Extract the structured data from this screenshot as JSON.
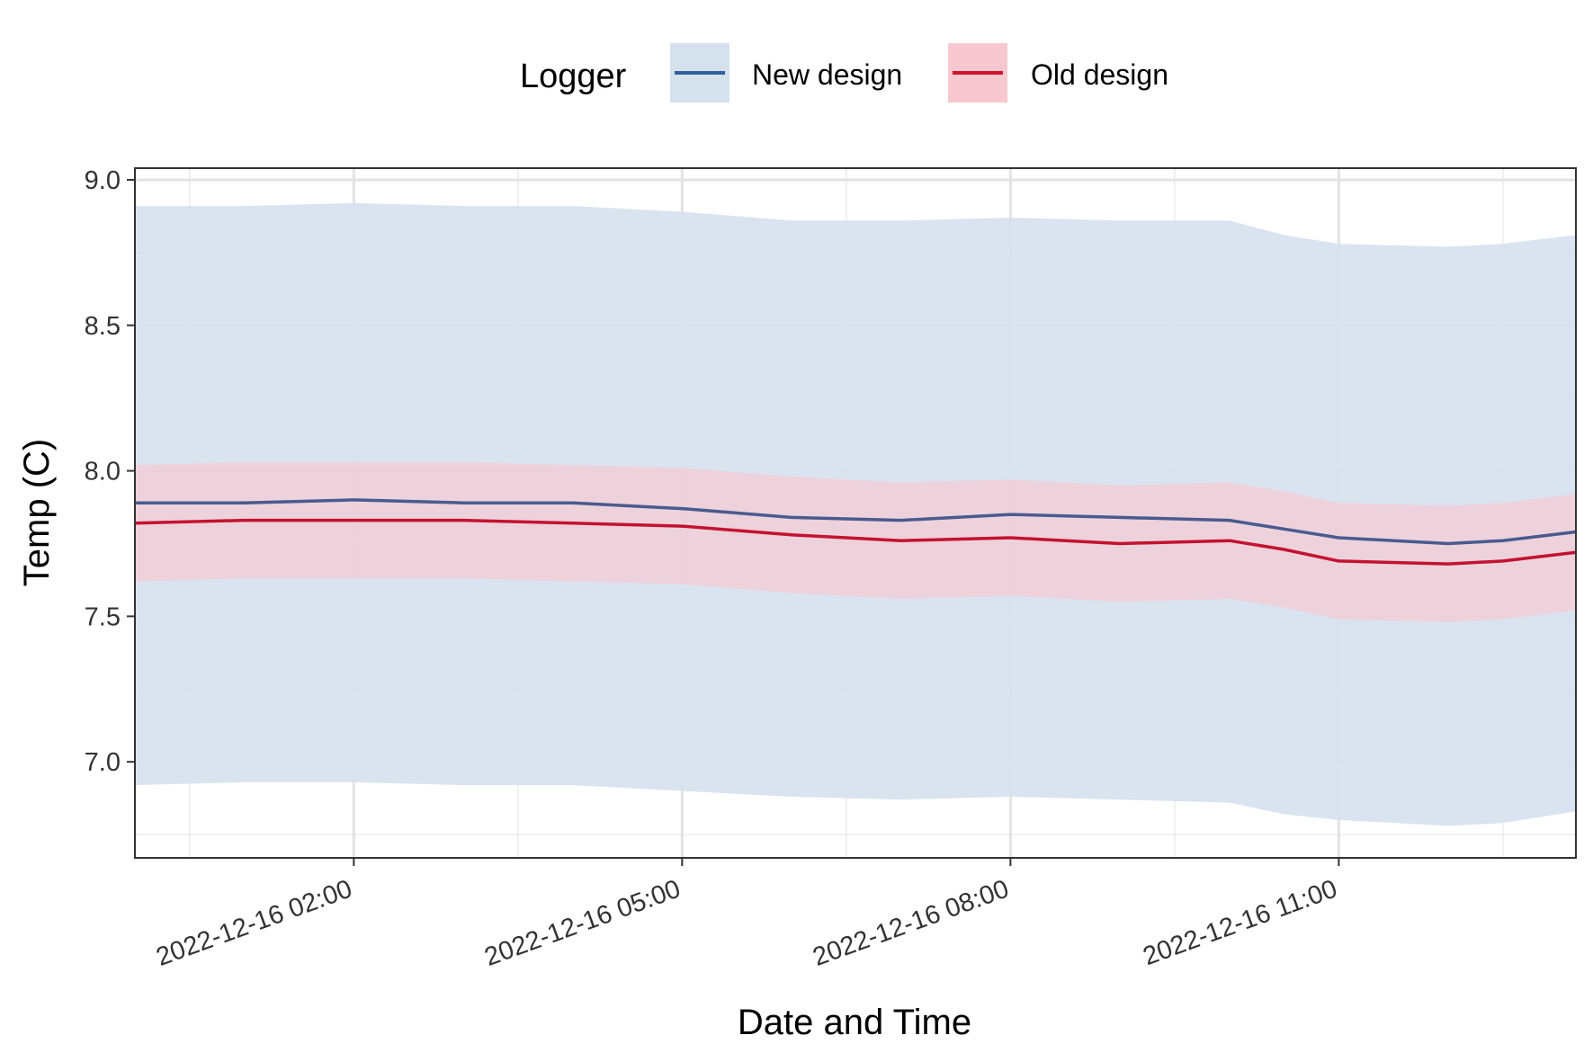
{
  "chart_data": {
    "type": "line",
    "xlabel": "Date and Time",
    "ylabel": "Temp (C)",
    "x_tick_labels": [
      "2022-12-16 02:00",
      "2022-12-16 05:00",
      "2022-12-16 08:00",
      "2022-12-16 11:00"
    ],
    "x_ticks": [
      "2022-12-16 02:00",
      "2022-12-16 05:00",
      "2022-12-16 08:00",
      "2022-12-16 11:00"
    ],
    "x_range": [
      "2022-12-16 00:00",
      "2022-12-16 13:10"
    ],
    "y_ticks": [
      7.0,
      7.5,
      8.0,
      8.5,
      9.0
    ],
    "y_tick_labels": [
      "7.0",
      "7.5",
      "8.0",
      "8.5",
      "9.0"
    ],
    "ylim": [
      6.67,
      9.04
    ],
    "grid": true,
    "legend": {
      "title": "Logger",
      "position": "top",
      "entries": [
        "New design",
        "Old design"
      ]
    },
    "x": [
      "2022-12-16 00:00",
      "2022-12-16 01:00",
      "2022-12-16 02:00",
      "2022-12-16 03:00",
      "2022-12-16 04:00",
      "2022-12-16 05:00",
      "2022-12-16 06:00",
      "2022-12-16 07:00",
      "2022-12-16 08:00",
      "2022-12-16 09:00",
      "2022-12-16 10:00",
      "2022-12-16 10:30",
      "2022-12-16 11:00",
      "2022-12-16 12:00",
      "2022-12-16 12:30",
      "2022-12-16 13:10"
    ],
    "series": [
      {
        "name": "New design",
        "color": "#2E5F9F",
        "line_color": "#4A5A8F",
        "band_color": "#D6E1EE",
        "values": [
          7.89,
          7.89,
          7.9,
          7.89,
          7.89,
          7.87,
          7.84,
          7.83,
          7.85,
          7.84,
          7.83,
          7.8,
          7.77,
          7.75,
          7.76,
          7.79
        ],
        "lower": [
          6.92,
          6.93,
          6.93,
          6.92,
          6.92,
          6.9,
          6.88,
          6.87,
          6.88,
          6.87,
          6.86,
          6.82,
          6.8,
          6.78,
          6.79,
          6.83
        ],
        "upper": [
          8.91,
          8.91,
          8.92,
          8.91,
          8.91,
          8.89,
          8.86,
          8.86,
          8.87,
          8.86,
          8.86,
          8.81,
          8.78,
          8.77,
          8.78,
          8.81
        ]
      },
      {
        "name": "Old design",
        "color": "#D0152A",
        "line_color": "#C41230",
        "band_color": "#F7C8CF",
        "values": [
          7.82,
          7.83,
          7.83,
          7.83,
          7.82,
          7.81,
          7.78,
          7.76,
          7.77,
          7.75,
          7.76,
          7.73,
          7.69,
          7.68,
          7.69,
          7.72
        ],
        "lower": [
          7.62,
          7.63,
          7.63,
          7.63,
          7.62,
          7.61,
          7.58,
          7.56,
          7.57,
          7.55,
          7.56,
          7.53,
          7.49,
          7.48,
          7.49,
          7.52
        ],
        "upper": [
          8.02,
          8.03,
          8.03,
          8.03,
          8.02,
          8.01,
          7.98,
          7.96,
          7.97,
          7.95,
          7.96,
          7.93,
          7.89,
          7.88,
          7.89,
          7.92
        ]
      }
    ]
  }
}
